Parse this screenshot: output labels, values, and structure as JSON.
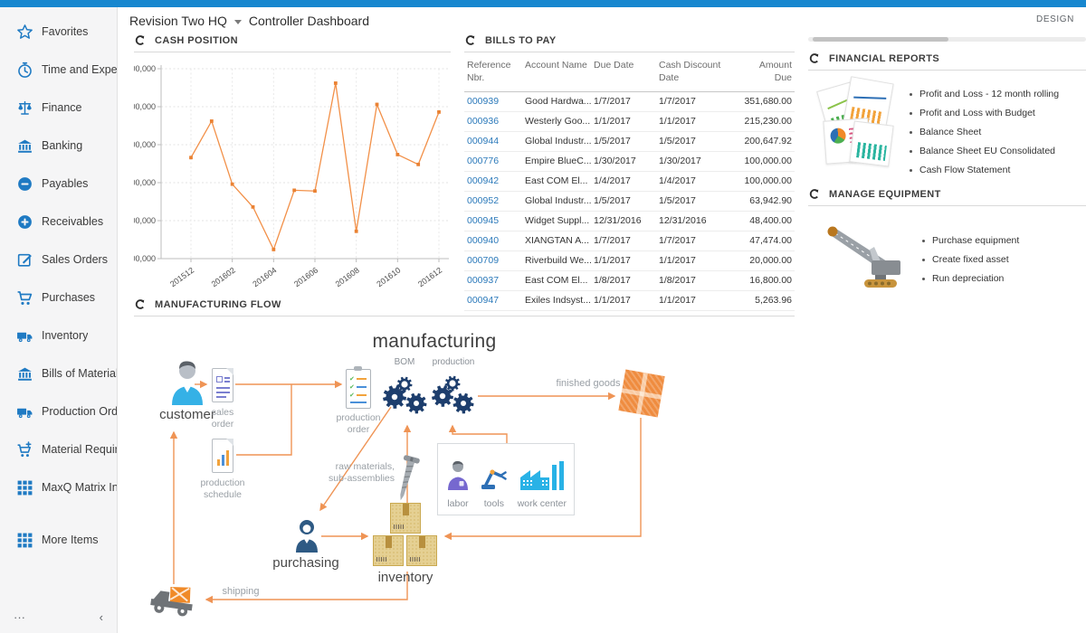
{
  "header": {
    "company": "Revision Two HQ",
    "page_title": "Controller Dashboard",
    "design_label": "DESIGN"
  },
  "sidebar": {
    "items": [
      {
        "label": "Favorites",
        "icon": "star"
      },
      {
        "label": "Time and Expenses",
        "icon": "clock"
      },
      {
        "label": "Finance",
        "icon": "scales"
      },
      {
        "label": "Banking",
        "icon": "bank"
      },
      {
        "label": "Payables",
        "icon": "minus-circle"
      },
      {
        "label": "Receivables",
        "icon": "plus-circle"
      },
      {
        "label": "Sales Orders",
        "icon": "edit"
      },
      {
        "label": "Purchases",
        "icon": "cart"
      },
      {
        "label": "Inventory",
        "icon": "truck"
      },
      {
        "label": "Bills of Material",
        "icon": "bank"
      },
      {
        "label": "Production Orders",
        "icon": "truck"
      },
      {
        "label": "Material Requirem...",
        "icon": "cart-plus"
      },
      {
        "label": "MaxQ Matrix Invent...",
        "icon": "grid"
      },
      {
        "label": "More Items",
        "icon": "grid",
        "gap_before": true
      }
    ],
    "footer": {
      "ellipsis": "···",
      "collapse": "‹"
    }
  },
  "chart_data": {
    "type": "line",
    "title": "CASH POSITION",
    "x": [
      "201512",
      "201601",
      "201602",
      "201603",
      "201604",
      "201605",
      "201606",
      "201607",
      "201608",
      "201609",
      "201610",
      "201611",
      "201612"
    ],
    "values": [
      63830000,
      64310000,
      63480000,
      63180000,
      62620000,
      63400000,
      63390000,
      64810000,
      62860000,
      64530000,
      63870000,
      63740000,
      64430000
    ],
    "x_tick_labels": [
      "201512",
      "201602",
      "201604",
      "201606",
      "201608",
      "201610",
      "201612"
    ],
    "x_tick_indexes": [
      0,
      2,
      4,
      6,
      8,
      10,
      12
    ],
    "ylim": [
      62500000,
      65000000
    ],
    "y_tick_step": 500000,
    "xlabel": "",
    "ylabel": "",
    "grid": true,
    "legend": false,
    "line_color": "#f29048",
    "point_color": "#ea8233"
  },
  "panels": {
    "cash_position": {
      "title": "CASH POSITION"
    },
    "bills_to_pay": {
      "title": "BILLS TO PAY",
      "columns": [
        "Reference Nbr.",
        "Account Name",
        "Due Date",
        "Cash Discount Date",
        "Amount Due"
      ],
      "rows": [
        [
          "000939",
          "Good Hardwa...",
          "1/7/2017",
          "1/7/2017",
          "351,680.00"
        ],
        [
          "000936",
          "Westerly Goo...",
          "1/1/2017",
          "1/1/2017",
          "215,230.00"
        ],
        [
          "000944",
          "Global Industr...",
          "1/5/2017",
          "1/5/2017",
          "200,647.92"
        ],
        [
          "000776",
          "Empire BlueC...",
          "1/30/2017",
          "1/30/2017",
          "100,000.00"
        ],
        [
          "000942",
          "East COM El...",
          "1/4/2017",
          "1/4/2017",
          "100,000.00"
        ],
        [
          "000952",
          "Global Industr...",
          "1/5/2017",
          "1/5/2017",
          "63,942.90"
        ],
        [
          "000945",
          "Widget Suppl...",
          "12/31/2016",
          "12/31/2016",
          "48,400.00"
        ],
        [
          "000940",
          "XIANGTAN A...",
          "1/7/2017",
          "1/7/2017",
          "47,474.00"
        ],
        [
          "000709",
          "Riverbuild We...",
          "1/1/2017",
          "1/1/2017",
          "20,000.00"
        ],
        [
          "000937",
          "East COM El...",
          "1/8/2017",
          "1/8/2017",
          "16,800.00"
        ],
        [
          "000947",
          "Exiles Indsyst...",
          "1/1/2017",
          "1/1/2017",
          "5,263.96"
        ]
      ]
    },
    "financial_reports": {
      "title": "FINANCIAL REPORTS",
      "links": [
        "Profit and Loss - 12 month rolling",
        "Profit and Loss with Budget",
        "Balance Sheet",
        "Balance Sheet EU Consolidated",
        "Cash Flow Statement"
      ]
    },
    "manage_equipment": {
      "title": "MANAGE EQUIPMENT",
      "links": [
        "Purchase equipment",
        "Create fixed asset",
        "Run depreciation"
      ]
    },
    "manufacturing_flow": {
      "title": "MANUFACTURING FLOW",
      "diagram": {
        "title": "manufacturing",
        "customer": "customer",
        "sales_order": "sales order",
        "production_schedule": "production schedule",
        "production_order": "production order",
        "bom": "BOM",
        "production": "production",
        "finished_goods": "finished goods",
        "raw_materials": "raw materials, sub-assemblies",
        "labor": "labor",
        "tools": "tools",
        "work_center": "work center",
        "purchasing": "purchasing",
        "inventory": "inventory",
        "shipping": "shipping",
        "arrow_color": "#ef9455"
      }
    }
  },
  "colors": {
    "topbar": "#1787cf",
    "sidebar_icon": "#1f7ac3",
    "link": "#2b79ba",
    "gear_navy": "#1d3e6d"
  }
}
